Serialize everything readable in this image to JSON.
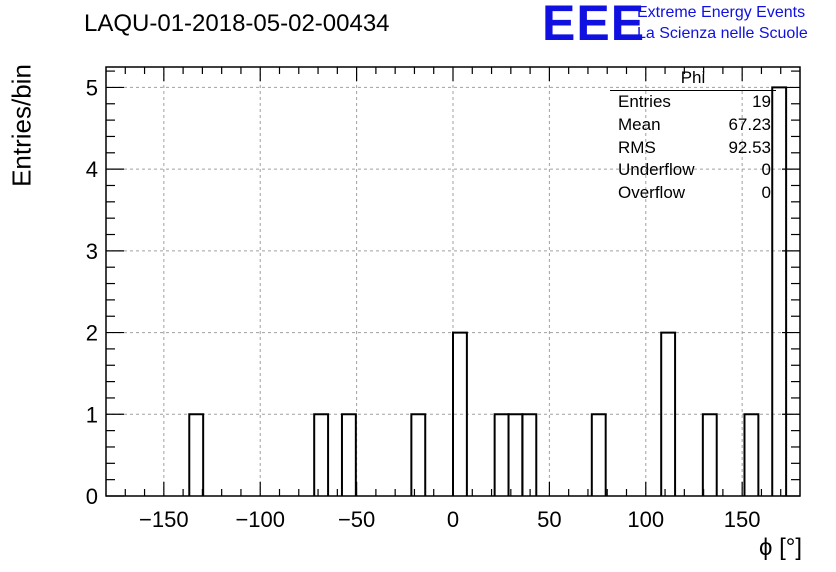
{
  "title": "LAQU-01-2018-05-02-00434",
  "logo": {
    "mark": "EEE",
    "line1": "Extreme Energy Events",
    "line2": "La Scienza nelle Scuole",
    "color": "#1010e0"
  },
  "stats": {
    "name": "Phi",
    "rows": [
      {
        "label": "Entries",
        "value": "19"
      },
      {
        "label": "Mean",
        "value": "67.23"
      },
      {
        "label": "RMS",
        "value": "92.53"
      },
      {
        "label": "Underflow",
        "value": "0"
      },
      {
        "label": "Overflow",
        "value": "0"
      }
    ]
  },
  "chart_data": {
    "type": "bar",
    "histogram": true,
    "title": "LAQU-01-2018-05-02-00434",
    "xlabel": "ϕ [°]",
    "ylabel": "Entries/bin",
    "xlim": [
      -180,
      180
    ],
    "ylim": [
      0,
      5.25
    ],
    "grid": true,
    "bin_width": 7.2,
    "x_ticks": [
      -150,
      -100,
      -50,
      0,
      50,
      100,
      150
    ],
    "x_tick_labels": [
      "−150",
      "−100",
      "−50",
      "0",
      "50",
      "100",
      "150"
    ],
    "y_ticks": [
      0,
      1,
      2,
      3,
      4,
      5
    ],
    "y_tick_labels": [
      "0",
      "1",
      "2",
      "3",
      "4",
      "5"
    ],
    "bins": [
      {
        "x0": -136.8,
        "x1": -129.6,
        "count": 1
      },
      {
        "x0": -72.0,
        "x1": -64.8,
        "count": 1
      },
      {
        "x0": -57.6,
        "x1": -50.4,
        "count": 1
      },
      {
        "x0": -21.6,
        "x1": -14.4,
        "count": 1
      },
      {
        "x0": 0.0,
        "x1": 7.2,
        "count": 2
      },
      {
        "x0": 21.6,
        "x1": 28.8,
        "count": 1
      },
      {
        "x0": 28.8,
        "x1": 36.0,
        "count": 1
      },
      {
        "x0": 36.0,
        "x1": 43.2,
        "count": 1
      },
      {
        "x0": 72.0,
        "x1": 79.2,
        "count": 1
      },
      {
        "x0": 108.0,
        "x1": 115.2,
        "count": 2
      },
      {
        "x0": 129.6,
        "x1": 136.8,
        "count": 1
      },
      {
        "x0": 151.2,
        "x1": 158.4,
        "count": 1
      },
      {
        "x0": 165.6,
        "x1": 172.8,
        "count": 5
      }
    ],
    "line_color": "#000000",
    "grid_color": "#a0a0a0"
  }
}
